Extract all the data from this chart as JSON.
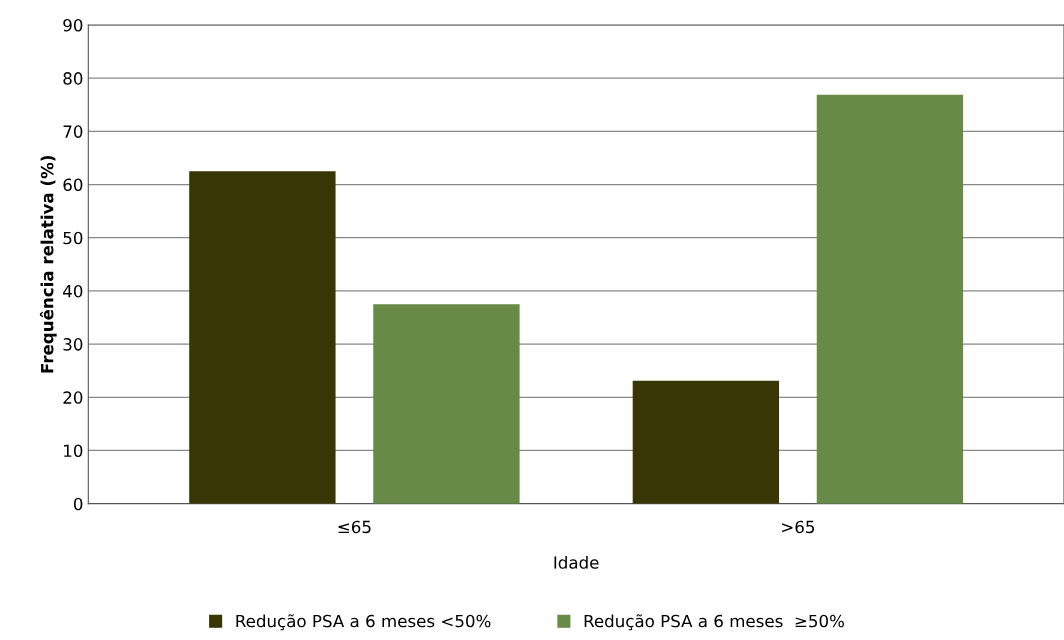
{
  "chart_data": {
    "type": "bar",
    "xlabel": "Idade",
    "ylabel": "Frequência relativa (%)",
    "categories": [
      "≤65",
      ">65"
    ],
    "series": [
      {
        "name": "Redução PSA a 6 meses <50%",
        "color": "#383604",
        "values": [
          62.5,
          23.1
        ]
      },
      {
        "name": "Redução PSA a 6 meses  ≥50%",
        "color": "#678a46",
        "values": [
          37.5,
          76.9
        ]
      }
    ],
    "ylim": [
      0,
      90
    ],
    "yticks": [
      0,
      10,
      20,
      30,
      40,
      50,
      60,
      70,
      80,
      90
    ],
    "grid": "y",
    "legend": "bottom"
  }
}
